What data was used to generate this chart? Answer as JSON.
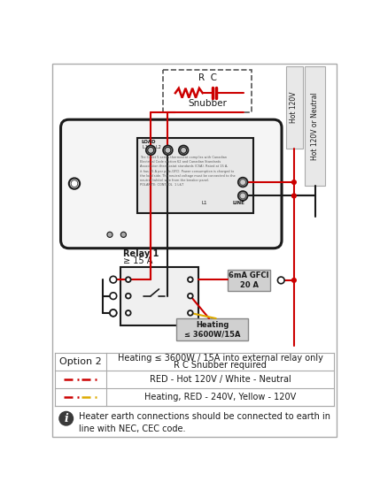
{
  "wire_red": "#cc0000",
  "wire_yellow": "#ddaa00",
  "dark_color": "#1a1a1a",
  "gray_box": "#cccccc",
  "light_gray": "#e8e8e8",
  "med_gray": "#d0d0d0",
  "border_color": "#999999",
  "snubber_label": "R  C",
  "snubber_sub": "Snubber",
  "relay_label": "Relay 1",
  "relay_sub": "≥ 15 A",
  "gfci_label": "6mA GFCI\n20 A",
  "heating_label": "Heating\n≤ 3600W/15A",
  "hot120_label": "Hot 120V",
  "neutral_label": "Hot 120V or Neutral",
  "note_text": "Heater earth connections should be connected to earth in\nline with NEC, CEC code.",
  "leg1_text1": "Heating ≤ 3600W / 15A into external relay only",
  "leg1_text2": "R C Snubber required",
  "leg2_text": "RED - Hot 120V / White - Neutral",
  "leg3_text": "Heating, RED - 240V, Yellow - 120V"
}
